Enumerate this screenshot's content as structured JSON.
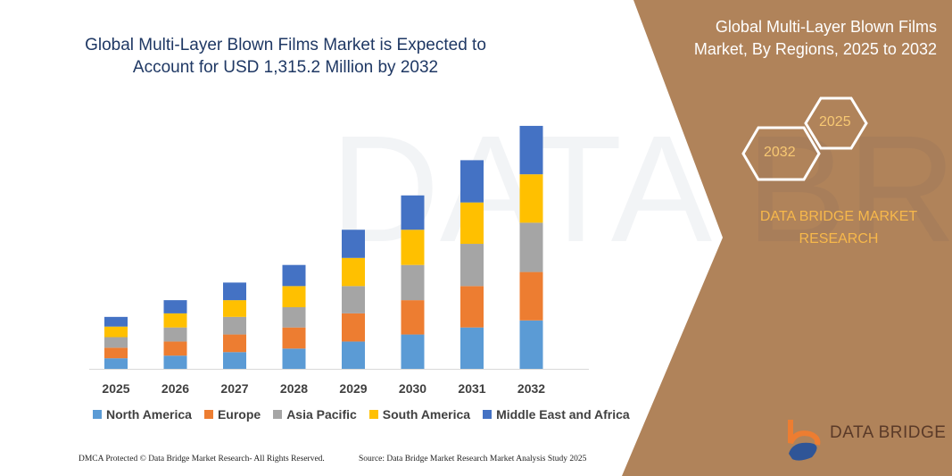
{
  "title": "Global Multi-Layer Blown Films Market is Expected to Account for USD 1,315.2 Million by 2032",
  "side_panel": {
    "title": "Global Multi-Layer Blown Films Market, By Regions, 2025 to 2032",
    "hex_start": "2025",
    "hex_end": "2032",
    "brand": "DATA BRIDGE MARKET RESEARCH",
    "logo_text": "DATA BRIDGE",
    "background_color": "#B0835A"
  },
  "footer": {
    "left": "DMCA Protected © Data Bridge Market Research- All Rights Reserved.",
    "right": "Source: Data Bridge Market Research  Market Analysis Study 2025"
  },
  "chart_data": {
    "type": "bar",
    "stacked": true,
    "categories": [
      "2025",
      "2026",
      "2027",
      "2028",
      "2029",
      "2030",
      "2031",
      "2032"
    ],
    "series": [
      {
        "name": "North America",
        "color": "#5B9BD5",
        "values": [
          12,
          15,
          19,
          23,
          31,
          39,
          47,
          55
        ]
      },
      {
        "name": "Europe",
        "color": "#ED7D31",
        "values": [
          12,
          16,
          20,
          24,
          32,
          39,
          47,
          55
        ]
      },
      {
        "name": "Asia Pacific",
        "color": "#A5A5A5",
        "values": [
          12,
          16,
          20,
          23,
          31,
          40,
          48,
          56
        ]
      },
      {
        "name": "South America",
        "color": "#FFC000",
        "values": [
          12,
          16,
          19,
          24,
          32,
          40,
          47,
          55
        ]
      },
      {
        "name": "Middle East and Africa",
        "color": "#4472C4",
        "values": [
          11,
          15,
          20,
          24,
          32,
          39,
          48,
          55
        ]
      }
    ],
    "ylim": [
      0,
      280
    ],
    "grid": false,
    "y_axis_shown": false,
    "legend_position": "bottom"
  }
}
